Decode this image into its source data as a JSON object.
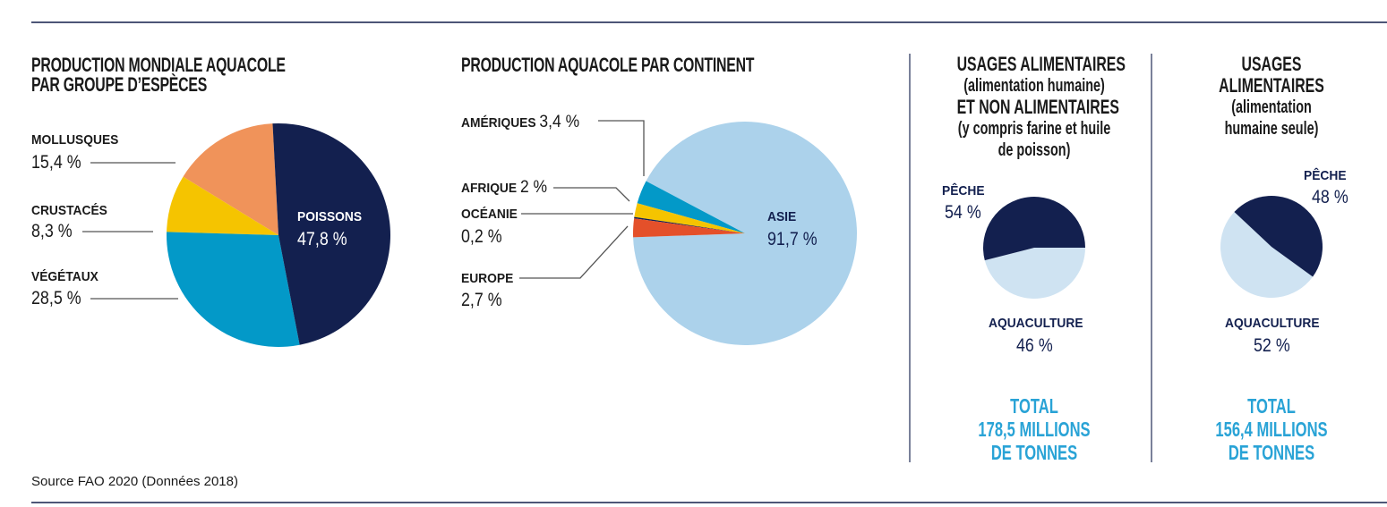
{
  "source": "Source FAO 2020 (Données 2018)",
  "colors": {
    "navy": "#13204f",
    "blue": "#0399c8",
    "yellow": "#f5c400",
    "orange": "#f0935a",
    "asia": "#acd2eb",
    "red": "#e4502a",
    "pale": "#cfe3f2",
    "total": "#29a3d6"
  },
  "chart_data": [
    {
      "type": "pie",
      "title": "PRODUCTION MONDIALE AQUACOLE PAR GROUPE D'ESPÈCES",
      "title_lines": [
        "PRODUCTION MONDIALE AQUACOLE",
        "PAR GROUPE D’ESPÈCES"
      ],
      "categories": [
        "POISSONS",
        "VÉGÉTAUX",
        "CRUSTACÉS",
        "MOLLUSQUES"
      ],
      "values": [
        47.8,
        28.5,
        8.3,
        15.4
      ],
      "value_labels": [
        "47,8 %",
        "28,5 %",
        "8,3 %",
        "15,4 %"
      ],
      "colors": [
        "#13204f",
        "#0399c8",
        "#f5c400",
        "#f0935a"
      ]
    },
    {
      "type": "pie",
      "title": "PRODUCTION AQUACOLE PAR CONTINENT",
      "categories": [
        "EUROPE",
        "OCÉANIE",
        "AFRIQUE",
        "AMÉRIQUES",
        "ASIE"
      ],
      "values": [
        2.7,
        0.2,
        2,
        3.4,
        91.7
      ],
      "value_labels": [
        "2,7 %",
        "0,2 %",
        "2 %",
        "3,4 %",
        "91,7 %"
      ],
      "colors": [
        "#e4502a",
        "#13204f",
        "#f5c400",
        "#0399c8",
        "#acd2eb"
      ]
    },
    {
      "type": "pie",
      "title_lines": [
        "USAGES ALIMENTAIRES",
        "(alimentation humaine)",
        "ET NON ALIMENTAIRES",
        "(y compris farine et huile",
        "de poisson)"
      ],
      "categories": [
        "PÊCHE",
        "AQUACULTURE"
      ],
      "values": [
        54,
        46
      ],
      "value_labels": [
        "54 %",
        "46 %"
      ],
      "colors": [
        "#13204f",
        "#cfe3f2"
      ],
      "total_lines": [
        "TOTAL",
        "178,5 MILLIONS",
        "DE TONNES"
      ]
    },
    {
      "type": "pie",
      "title_lines": [
        "USAGES",
        "ALIMENTAIRES",
        "(alimentation",
        "humaine seule)"
      ],
      "categories": [
        "PÊCHE",
        "AQUACULTURE"
      ],
      "values": [
        48,
        52
      ],
      "value_labels": [
        "48 %",
        "52 %"
      ],
      "colors": [
        "#13204f",
        "#cfe3f2"
      ],
      "total_lines": [
        "TOTAL",
        "156,4 MILLIONS",
        "DE TONNES"
      ]
    }
  ]
}
